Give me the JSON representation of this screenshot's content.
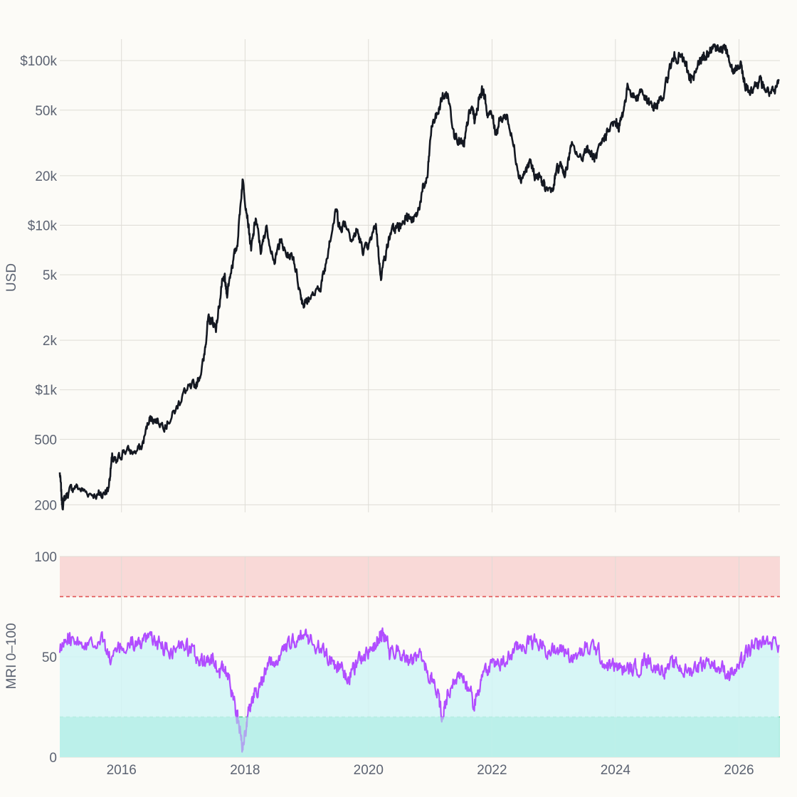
{
  "chart_data": [
    {
      "type": "line",
      "ylabel": "USD",
      "yscale": "log",
      "ylim": [
        180,
        135000
      ],
      "xlim": [
        "2015-01-01",
        "2026-08-31"
      ],
      "x_ticks": [
        "2016",
        "2018",
        "2020",
        "2022",
        "2024",
        "2026"
      ],
      "y_ticks": [
        {
          "value": 200,
          "label": "200"
        },
        {
          "value": 500,
          "label": "500"
        },
        {
          "value": 1000,
          "label": "$1k"
        },
        {
          "value": 2000,
          "label": "2k"
        },
        {
          "value": 5000,
          "label": "5k"
        },
        {
          "value": 10000,
          "label": "$10k"
        },
        {
          "value": 20000,
          "label": "20k"
        },
        {
          "value": 50000,
          "label": "50k"
        },
        {
          "value": 100000,
          "label": "$100k"
        }
      ],
      "grid": true,
      "line_color": "#141821",
      "series": [
        {
          "x": [
            "2015-01-01",
            "2015-01-15",
            "2015-02-15",
            "2015-04-01",
            "2015-06-01",
            "2015-08-15",
            "2015-09-15",
            "2015-10-15",
            "2015-11-05",
            "2015-12-01",
            "2016-01-15",
            "2016-03-15",
            "2016-05-01",
            "2016-06-15",
            "2016-07-15",
            "2016-09-15",
            "2016-11-15",
            "2016-12-31",
            "2017-02-15",
            "2017-03-25",
            "2017-05-01",
            "2017-05-25",
            "2017-06-15",
            "2017-07-15",
            "2017-08-15",
            "2017-09-01",
            "2017-09-15",
            "2017-10-15",
            "2017-11-15",
            "2017-12-17",
            "2018-01-15",
            "2018-02-06",
            "2018-03-05",
            "2018-04-06",
            "2018-05-05",
            "2018-06-28",
            "2018-07-25",
            "2018-09-01",
            "2018-10-15",
            "2018-11-25",
            "2018-12-15",
            "2019-01-15",
            "2019-03-15",
            "2019-04-15",
            "2019-05-15",
            "2019-06-26",
            "2019-07-15",
            "2019-08-15",
            "2019-09-30",
            "2019-10-26",
            "2019-11-25",
            "2019-12-31",
            "2020-02-14",
            "2020-03-13",
            "2020-04-15",
            "2020-05-15",
            "2020-06-15",
            "2020-07-15",
            "2020-08-15",
            "2020-09-15",
            "2020-10-15",
            "2020-11-15",
            "2020-12-15",
            "2021-01-08",
            "2021-02-15",
            "2021-03-13",
            "2021-04-14",
            "2021-05-19",
            "2021-06-22",
            "2021-07-20",
            "2021-08-15",
            "2021-09-07",
            "2021-09-21",
            "2021-10-20",
            "2021-11-10",
            "2021-12-04",
            "2022-01-05",
            "2022-01-24",
            "2022-02-15",
            "2022-03-29",
            "2022-05-09",
            "2022-06-18",
            "2022-07-15",
            "2022-08-15",
            "2022-09-15",
            "2022-10-15",
            "2022-11-09",
            "2022-12-30",
            "2023-01-15",
            "2023-02-15",
            "2023-03-10",
            "2023-04-14",
            "2023-06-15",
            "2023-07-15",
            "2023-08-17",
            "2023-09-11",
            "2023-10-24",
            "2023-11-15",
            "2023-12-31",
            "2024-01-23",
            "2024-02-15",
            "2024-03-14",
            "2024-05-01",
            "2024-06-01",
            "2024-07-05",
            "2024-08-05",
            "2024-09-06",
            "2024-10-15",
            "2024-11-15",
            "2024-12-17",
            "2025-01-20",
            "2025-02-15",
            "2025-03-10",
            "2025-04-08",
            "2025-05-15",
            "2025-06-15",
            "2025-07-14",
            "2025-08-14",
            "2025-09-15",
            "2025-10-06",
            "2025-10-20",
            "2025-11-21",
            "2025-12-15",
            "2026-01-15",
            "2026-02-05",
            "2026-03-01",
            "2026-04-01",
            "2026-05-01",
            "2026-06-01",
            "2026-07-01",
            "2026-08-01",
            "2026-08-25"
          ],
          "y": [
            315,
            200,
            235,
            260,
            240,
            230,
            235,
            250,
            380,
            360,
            430,
            415,
            450,
            680,
            660,
            610,
            740,
            960,
            1020,
            1100,
            1500,
            2600,
            2650,
            2400,
            4200,
            4800,
            3800,
            5700,
            7500,
            19000,
            11500,
            7000,
            11000,
            6800,
            9800,
            5900,
            8200,
            6600,
            6400,
            3800,
            3300,
            3600,
            4000,
            5200,
            8000,
            12500,
            9500,
            10500,
            8200,
            9400,
            7100,
            7200,
            10200,
            4900,
            7000,
            9200,
            9600,
            10000,
            11800,
            10500,
            11500,
            16000,
            19500,
            40000,
            48000,
            60000,
            63000,
            38000,
            32000,
            30000,
            46000,
            52000,
            43000,
            62000,
            67000,
            48000,
            46000,
            36000,
            43000,
            47000,
            30000,
            19000,
            21000,
            24000,
            19500,
            19500,
            16500,
            16500,
            21000,
            23500,
            20000,
            30000,
            25000,
            30000,
            26000,
            25500,
            34000,
            37000,
            42000,
            39800,
            48000,
            71000,
            58000,
            67000,
            56000,
            52000,
            54000,
            63000,
            90000,
            106000,
            105000,
            97000,
            82000,
            76000,
            104000,
            105000,
            120000,
            123000,
            113000,
            125000,
            111000,
            86000,
            89000,
            93000,
            70000,
            66000,
            70000,
            76000,
            68000,
            64000,
            63000,
            77000
          ]
        }
      ]
    },
    {
      "type": "line",
      "ylabel": "MRI 0–100",
      "ylim": [
        0,
        100
      ],
      "xlim": [
        "2015-01-01",
        "2026-08-31"
      ],
      "x_ticks": [
        "2016",
        "2018",
        "2020",
        "2022",
        "2024",
        "2026"
      ],
      "y_ticks": [
        {
          "value": 0,
          "label": "0"
        },
        {
          "value": 50,
          "label": "50"
        },
        {
          "value": 100,
          "label": "100"
        }
      ],
      "grid": true,
      "bands": [
        {
          "from": 80,
          "to": 100,
          "color": "#f9d9d7"
        },
        {
          "from": 0,
          "to": 20,
          "color": "#aeece1"
        }
      ],
      "threshold_lines": [
        {
          "value": 80,
          "color": "#e05555"
        },
        {
          "value": 20,
          "color": "#3ec47a"
        }
      ],
      "line_color": "#b14dff",
      "fill_color": "#d0f5f6",
      "series": [
        {
          "x": [
            "2015-01-01",
            "2015-03-01",
            "2015-06-01",
            "2015-09-01",
            "2015-11-01",
            "2016-01-01",
            "2016-03-01",
            "2016-05-01",
            "2016-07-01",
            "2016-09-01",
            "2016-11-01",
            "2017-01-01",
            "2017-02-15",
            "2017-04-01",
            "2017-05-15",
            "2017-06-15",
            "2017-08-01",
            "2017-09-15",
            "2017-11-01",
            "2017-12-05",
            "2017-12-20",
            "2018-01-15",
            "2018-03-01",
            "2018-04-15",
            "2018-06-01",
            "2018-08-01",
            "2018-10-15",
            "2018-12-15",
            "2019-02-01",
            "2019-04-01",
            "2019-06-01",
            "2019-07-15",
            "2019-09-01",
            "2019-10-25",
            "2019-12-15",
            "2020-02-15",
            "2020-03-15",
            "2020-05-01",
            "2020-07-01",
            "2020-09-01",
            "2020-10-15",
            "2020-12-15",
            "2021-02-01",
            "2021-03-15",
            "2021-04-15",
            "2021-06-15",
            "2021-08-01",
            "2021-09-15",
            "2021-11-01",
            "2022-01-01",
            "2022-03-01",
            "2022-05-01",
            "2022-07-01",
            "2022-09-01",
            "2022-11-01",
            "2023-01-01",
            "2023-03-01",
            "2023-05-01",
            "2023-07-01",
            "2023-09-01",
            "2023-11-01",
            "2024-01-01",
            "2024-03-01",
            "2024-05-01",
            "2024-07-01",
            "2024-09-01",
            "2024-11-01",
            "2025-01-01",
            "2025-03-01",
            "2025-05-01",
            "2025-07-01",
            "2025-09-01",
            "2025-11-01",
            "2026-01-01",
            "2026-02-15",
            "2026-04-01",
            "2026-06-01",
            "2026-08-25"
          ],
          "y": [
            52,
            62,
            57,
            60,
            48,
            55,
            56,
            57,
            58,
            55,
            53,
            56,
            52,
            48,
            47,
            51,
            44,
            42,
            28,
            12,
            6,
            20,
            33,
            40,
            46,
            51,
            57,
            61,
            57,
            54,
            48,
            44,
            39,
            47,
            52,
            55,
            63,
            54,
            53,
            47,
            51,
            43,
            33,
            20,
            33,
            40,
            37,
            25,
            41,
            47,
            46,
            52,
            56,
            58,
            56,
            52,
            54,
            49,
            53,
            55,
            46,
            45,
            43,
            44,
            49,
            45,
            44,
            46,
            42,
            46,
            48,
            45,
            42,
            44,
            52,
            54,
            58,
            56
          ]
        }
      ]
    }
  ]
}
